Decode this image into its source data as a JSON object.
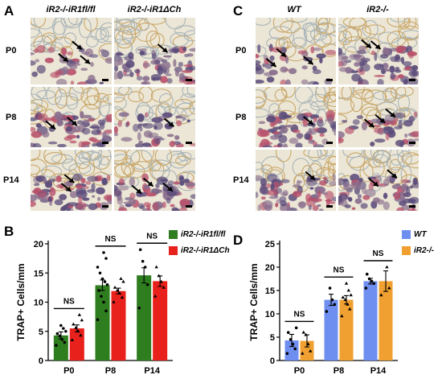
{
  "panels": {
    "A": {
      "letter": "A",
      "columns": [
        "iR2-/-iR1fl/fl",
        "iR2-/-iR1ΔCh"
      ],
      "rows": [
        "P0",
        "P8",
        "P14"
      ]
    },
    "B": {
      "letter": "B"
    },
    "C": {
      "letter": "C",
      "columns": [
        "WT",
        "iR2-/-"
      ],
      "rows": [
        "P0",
        "P8",
        "P14"
      ]
    },
    "D": {
      "letter": "D"
    }
  },
  "colors": {
    "B_series1": "#2e7d1f",
    "B_series2": "#e8211d",
    "D_series1": "#6f8ff0",
    "D_series2": "#f0a030"
  },
  "chart_data": [
    {
      "panel": "B",
      "type": "bar",
      "categories": [
        "P0",
        "P8",
        "P14"
      ],
      "ylabel": "TRAP+ Cells/mm",
      "xlabel": "",
      "ylim": [
        0,
        20
      ],
      "yticks": [
        0,
        5,
        10,
        15,
        20
      ],
      "legend_position": "top-right",
      "series": [
        {
          "name": "iR2-/-iR1fl/fl",
          "values": [
            4.3,
            12.9,
            14.6
          ],
          "errors": [
            0.6,
            0.9,
            1.3
          ],
          "points": [
            [
              2.6,
              3.1,
              3.6,
              4.2,
              4.6,
              5.0,
              5.5,
              6.0
            ],
            [
              7.0,
              8.5,
              10.0,
              11.0,
              12.0,
              13.0,
              13.5,
              14.0,
              15.0,
              16.0,
              17.5,
              18.5
            ],
            [
              9.0,
              13.0,
              16.0,
              17.0,
              19.0
            ]
          ]
        },
        {
          "name": "iR2-/-iR1ΔCh",
          "values": [
            5.5,
            11.9,
            13.6
          ],
          "errors": [
            0.6,
            0.5,
            0.9
          ],
          "points": [
            [
              3.5,
              4.3,
              5.0,
              5.6,
              6.2,
              6.9,
              7.8
            ],
            [
              10.0,
              10.8,
              11.5,
              12.0,
              12.5,
              13.5,
              14.0
            ],
            [
              11.0,
              12.5,
              13.5,
              14.5,
              16.0
            ]
          ]
        }
      ],
      "annotations": [
        "NS",
        "NS",
        "NS"
      ]
    },
    {
      "panel": "D",
      "type": "bar",
      "categories": [
        "P0",
        "P8",
        "P14"
      ],
      "ylabel": "TRAP+ Cells/mm",
      "xlabel": "",
      "ylim": [
        0,
        25
      ],
      "yticks": [
        0,
        5,
        10,
        15,
        20,
        25
      ],
      "legend_position": "top-right",
      "series": [
        {
          "name": "WT",
          "values": [
            4.3,
            13.0,
            17.0
          ],
          "errors": [
            1.3,
            1.2,
            0.6
          ],
          "points": [
            [
              1.5,
              2.5,
              3.5,
              4.5,
              6.0,
              7.0
            ],
            [
              10.5,
              12.0,
              13.0,
              15.5
            ],
            [
              15.5,
              16.5,
              17.0,
              17.5,
              18.5
            ]
          ]
        },
        {
          "name": "iR2-/-",
          "values": [
            4.2,
            13.0,
            17.0
          ],
          "errors": [
            1.3,
            0.9,
            2.2
          ],
          "points": [
            [
              1.5,
              2.0,
              3.5,
              5.5,
              6.0
            ],
            [
              9.5,
              11.0,
              12.0,
              13.0,
              13.5,
              14.0,
              15.0,
              16.5
            ],
            [
              14.0,
              15.5,
              20.0
            ]
          ]
        }
      ],
      "annotations": [
        "NS",
        "NS",
        "NS"
      ]
    }
  ]
}
